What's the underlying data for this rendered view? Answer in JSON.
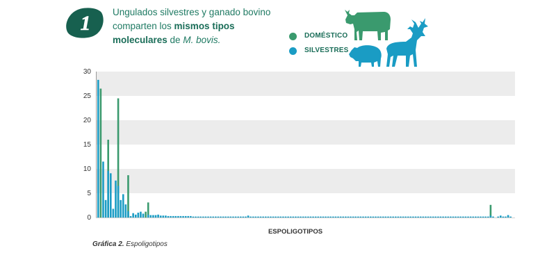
{
  "header": {
    "step_number": "1",
    "title_part1": "Ungulados silvestres y ganado bovino comparten los ",
    "title_bold": "mismos tipos moleculares",
    "title_part2": " de ",
    "title_italic": "M. bovis.",
    "caption_bold": "Gráfica 2.",
    "caption_rest": " Espoligotipos"
  },
  "colors": {
    "domestico": "#3a9a6e",
    "silvestres": "#1a9cc4",
    "badge": "#17604f",
    "band": "#ececec"
  },
  "icons": [
    "cow-icon",
    "boar-icon",
    "deer-icon"
  ],
  "chart_data": {
    "type": "bar",
    "title": "",
    "xlabel": "ESPOLIGOTIPOS",
    "ylabel": "",
    "ylim": [
      0,
      30
    ],
    "yticks": [
      "0",
      "5",
      "10",
      "15",
      "20",
      "25",
      "30"
    ],
    "legend_position": "top",
    "series": [
      {
        "name": "DOMÉSTICO",
        "color": "#3a9a6e",
        "values": [
          0,
          26.5,
          0,
          0,
          16,
          0,
          0,
          0,
          24.5,
          0,
          0,
          0,
          8.7,
          0,
          0,
          0,
          0,
          0,
          0,
          1.2,
          3.1,
          0,
          0,
          0,
          0,
          0,
          0,
          0,
          0,
          0,
          0,
          0,
          0,
          0,
          0,
          0,
          0,
          0,
          0,
          0,
          0,
          0,
          0,
          0,
          0,
          0,
          0,
          0,
          0,
          0,
          0,
          0,
          0,
          0,
          0,
          0,
          0,
          0,
          0,
          0,
          0,
          0,
          0,
          0,
          0,
          0,
          0,
          0,
          0,
          0,
          0,
          0,
          0,
          0,
          0,
          0,
          0,
          0,
          0,
          0,
          0,
          0,
          0,
          0,
          0,
          0,
          0,
          0,
          0,
          0,
          0,
          0,
          0,
          0,
          0,
          0,
          0,
          0,
          0,
          0,
          0,
          0,
          0,
          0,
          0,
          0,
          0,
          0,
          0,
          0,
          0,
          0,
          0,
          0,
          0,
          0,
          0,
          0,
          0,
          0,
          0,
          0,
          0,
          0,
          0,
          0,
          0,
          0,
          0,
          0,
          0,
          0,
          0,
          0,
          0,
          0,
          0,
          0,
          0,
          0,
          0,
          0,
          0,
          0,
          0,
          0,
          0,
          0,
          0,
          0,
          0,
          0,
          0,
          0,
          0,
          0,
          0,
          2.6,
          0,
          0,
          0,
          0,
          0,
          0,
          0,
          0
        ]
      },
      {
        "name": "SILVESTRES",
        "color": "#1a9cc4",
        "values": [
          28.3,
          0,
          11.5,
          3.6,
          9.6,
          9.1,
          1.8,
          7.6,
          6.5,
          3.6,
          4.8,
          2.7,
          1.3,
          0.3,
          0.9,
          0.6,
          1.0,
          1.2,
          0.8,
          0,
          0.6,
          0.5,
          0.5,
          0.5,
          0.6,
          0.4,
          0.4,
          0.4,
          0.3,
          0.3,
          0.3,
          0.3,
          0.3,
          0.3,
          0.3,
          0.3,
          0.3,
          0.3,
          0.2,
          0.2,
          0.2,
          0.2,
          0.2,
          0.2,
          0.2,
          0.2,
          0.2,
          0.2,
          0.2,
          0.2,
          0.2,
          0.2,
          0.2,
          0.2,
          0.2,
          0.2,
          0.2,
          0.2,
          0.2,
          0.2,
          0.4,
          0.2,
          0.2,
          0.2,
          0.2,
          0.2,
          0.2,
          0.2,
          0.2,
          0.2,
          0.2,
          0.2,
          0.2,
          0.2,
          0.2,
          0.2,
          0.2,
          0.2,
          0.2,
          0.2,
          0.2,
          0.2,
          0.2,
          0.2,
          0.2,
          0.2,
          0.2,
          0.2,
          0.2,
          0.2,
          0.2,
          0.2,
          0.2,
          0.2,
          0.2,
          0.2,
          0.2,
          0.2,
          0.2,
          0.2,
          0.2,
          0.2,
          0.2,
          0.2,
          0.2,
          0.2,
          0.2,
          0.2,
          0.2,
          0.2,
          0.2,
          0.2,
          0.2,
          0.2,
          0.2,
          0.2,
          0.2,
          0.2,
          0.2,
          0.2,
          0.2,
          0.2,
          0.2,
          0.2,
          0.2,
          0.2,
          0.2,
          0.2,
          0.2,
          0.2,
          0.2,
          0.2,
          0.2,
          0.2,
          0.2,
          0.2,
          0.2,
          0.2,
          0.2,
          0.2,
          0.2,
          0.2,
          0.2,
          0.2,
          0.2,
          0.2,
          0.2,
          0.2,
          0.2,
          0.2,
          0.2,
          0.2,
          0.2,
          0.2,
          0.2,
          0.2,
          0.2,
          0.4,
          0.2,
          0,
          0.2,
          0.4,
          0.2,
          0.2,
          0.5,
          0.2
        ]
      }
    ]
  }
}
